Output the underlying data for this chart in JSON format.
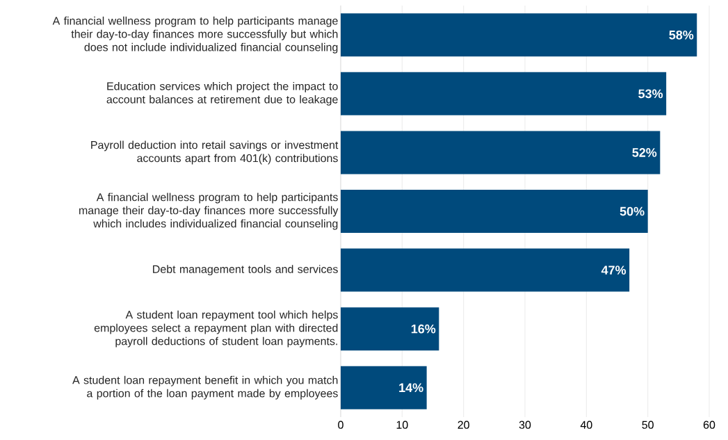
{
  "chart_data": {
    "type": "bar",
    "orientation": "horizontal",
    "categories": [
      "A financial wellness program to help participants manage their day-to-day finances more successfully but which does not include individualized financial counseling",
      "Education services which project the impact to account balances at retirement due to leakage",
      "Payroll deduction into retail savings or investment accounts apart from 401(k) contributions",
      "A financial wellness program to help participants manage their day-to-day finances more successfully which includes individualized financial counseling",
      "Debt management tools and services",
      "A student loan repayment tool which helps employees select a repayment plan with directed payroll deductions of student loan payments.",
      "A student loan repayment benefit in which you match a portion of the loan payment made by employees"
    ],
    "values": [
      58,
      53,
      52,
      50,
      47,
      16,
      14
    ],
    "value_labels": [
      "58%",
      "53%",
      "52%",
      "50%",
      "47%",
      "16%",
      "14%"
    ],
    "color": "#004a7c",
    "xlim": [
      0,
      60
    ],
    "xticks": [
      0,
      10,
      20,
      30,
      40,
      50,
      60
    ],
    "grid": "x"
  }
}
